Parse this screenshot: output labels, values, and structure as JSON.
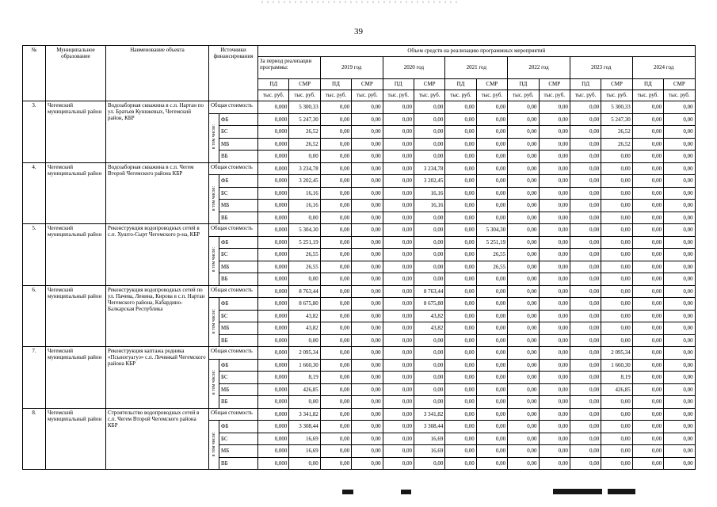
{
  "page": {
    "number": "39"
  },
  "table": {
    "headers": {
      "num": "№",
      "municipality": "Муниципальное образование",
      "object": "Наименование объекта",
      "sources": "Источники финансирования",
      "volume": "Объем средств на реализацию программных мероприятий",
      "period": "За период реализации программы:",
      "years": [
        "2019 год",
        "2020 год",
        "2021 год",
        "2022 год",
        "2023 год",
        "2024 год"
      ],
      "pd": "ПД",
      "smr": "СМР",
      "unit": "тыс. руб."
    },
    "labels": {
      "total": "Общая стоимость",
      "including": "в том числе:"
    },
    "groups": [
      {
        "num": "3.",
        "municipality": "Чегемский муниципальный район",
        "object": "Водозаборная скважина в с.п. Нартан по ул. Братьев Кунижевых, Чегемский район, КБР",
        "total": [
          "0,000",
          "5 300,33",
          "0,00",
          "0,00",
          "0,00",
          "0,00",
          "0,00",
          "0,00",
          "0,00",
          "0,00",
          "0,00",
          "5 300,33",
          "0,00",
          "0,00"
        ],
        "sources": [
          {
            "label": "ФБ",
            "values": [
              "0,000",
              "5 247,30",
              "0,00",
              "0,00",
              "0,00",
              "0,00",
              "0,00",
              "0,00",
              "0,00",
              "0,00",
              "0,00",
              "5 247,30",
              "0,00",
              "0,00"
            ]
          },
          {
            "label": "БС",
            "values": [
              "0,000",
              "26,52",
              "0,00",
              "0,00",
              "0,00",
              "0,00",
              "0,00",
              "0,00",
              "0,00",
              "0,00",
              "0,00",
              "26,52",
              "0,00",
              "0,00"
            ]
          },
          {
            "label": "МБ",
            "values": [
              "0,000",
              "26,52",
              "0,00",
              "0,00",
              "0,00",
              "0,00",
              "0,00",
              "0,00",
              "0,00",
              "0,00",
              "0,00",
              "26,52",
              "0,00",
              "0,00"
            ]
          },
          {
            "label": "ВБ",
            "values": [
              "0,000",
              "0,00",
              "0,00",
              "0,00",
              "0,00",
              "0,00",
              "0,00",
              "0,00",
              "0,00",
              "0,00",
              "0,00",
              "0,00",
              "0,00",
              "0,00"
            ]
          }
        ]
      },
      {
        "num": "4.",
        "municipality": "Чегемский муниципальный район",
        "object": "Водозаборная скважина в с.п. Чегем Второй Чегемского района КБР",
        "total": [
          "0,000",
          "3 234,78",
          "0,00",
          "0,00",
          "0,00",
          "3 234,78",
          "0,00",
          "0,00",
          "0,00",
          "0,00",
          "0,00",
          "0,00",
          "0,00",
          "0,00"
        ],
        "sources": [
          {
            "label": "ФБ",
            "values": [
              "0,000",
              "3 202,45",
              "0,00",
              "0,00",
              "0,00",
              "3 202,45",
              "0,00",
              "0,00",
              "0,00",
              "0,00",
              "0,00",
              "0,00",
              "0,00",
              "0,00"
            ]
          },
          {
            "label": "БС",
            "values": [
              "0,000",
              "16,16",
              "0,00",
              "0,00",
              "0,00",
              "16,16",
              "0,00",
              "0,00",
              "0,00",
              "0,00",
              "0,00",
              "0,00",
              "0,00",
              "0,00"
            ]
          },
          {
            "label": "МБ",
            "values": [
              "0,000",
              "16,16",
              "0,00",
              "0,00",
              "0,00",
              "16,16",
              "0,00",
              "0,00",
              "0,00",
              "0,00",
              "0,00",
              "0,00",
              "0,00",
              "0,00"
            ]
          },
          {
            "label": "ВБ",
            "values": [
              "0,000",
              "0,00",
              "0,00",
              "0,00",
              "0,00",
              "0,00",
              "0,00",
              "0,00",
              "0,00",
              "0,00",
              "0,00",
              "0,00",
              "0,00",
              "0,00"
            ]
          }
        ]
      },
      {
        "num": "5.",
        "municipality": "Чегемский муниципальный район",
        "object": "Реконструкция водопроводных сетей в с.п. Хушто-Сырт Чегемского р-на, КБР",
        "total": [
          "0,000",
          "5 304,30",
          "0,00",
          "0,00",
          "0,00",
          "0,00",
          "0,00",
          "5 304,30",
          "0,00",
          "0,00",
          "0,00",
          "0,00",
          "0,00",
          "0,00"
        ],
        "sources": [
          {
            "label": "ФБ",
            "values": [
              "0,000",
              "5 251,19",
              "0,00",
              "0,00",
              "0,00",
              "0,00",
              "0,00",
              "5 251,19",
              "0,00",
              "0,00",
              "0,00",
              "0,00",
              "0,00",
              "0,00"
            ]
          },
          {
            "label": "БС",
            "values": [
              "0,000",
              "26,55",
              "0,00",
              "0,00",
              "0,00",
              "0,00",
              "0,00",
              "26,55",
              "0,00",
              "0,00",
              "0,00",
              "0,00",
              "0,00",
              "0,00"
            ]
          },
          {
            "label": "МБ",
            "values": [
              "0,000",
              "26,55",
              "0,00",
              "0,00",
              "0,00",
              "0,00",
              "0,00",
              "26,55",
              "0,00",
              "0,00",
              "0,00",
              "0,00",
              "0,00",
              "0,00"
            ]
          },
          {
            "label": "ВБ",
            "values": [
              "0,000",
              "0,00",
              "0,00",
              "0,00",
              "0,00",
              "0,00",
              "0,00",
              "0,00",
              "0,00",
              "0,00",
              "0,00",
              "0,00",
              "0,00",
              "0,00"
            ]
          }
        ]
      },
      {
        "num": "6.",
        "municipality": "Чегемский муниципальный район",
        "object": "Реконструкция водопроводных сетей по ул. Пачева, Ленина, Кирова в с.п. Нартан Чегемского района, Кабардино-Балкарская Республика",
        "total": [
          "0,000",
          "8 763,44",
          "0,00",
          "0,00",
          "0,00",
          "8 763,44",
          "0,00",
          "0,00",
          "0,00",
          "0,00",
          "0,00",
          "0,00",
          "0,00",
          "0,00"
        ],
        "sources": [
          {
            "label": "ФБ",
            "values": [
              "0,000",
              "8 675,80",
              "0,00",
              "0,00",
              "0,00",
              "8 675,80",
              "0,00",
              "0,00",
              "0,00",
              "0,00",
              "0,00",
              "0,00",
              "0,00",
              "0,00"
            ]
          },
          {
            "label": "БС",
            "values": [
              "0,000",
              "43,82",
              "0,00",
              "0,00",
              "0,00",
              "43,82",
              "0,00",
              "0,00",
              "0,00",
              "0,00",
              "0,00",
              "0,00",
              "0,00",
              "0,00"
            ]
          },
          {
            "label": "МБ",
            "values": [
              "0,000",
              "43,82",
              "0,00",
              "0,00",
              "0,00",
              "43,82",
              "0,00",
              "0,00",
              "0,00",
              "0,00",
              "0,00",
              "0,00",
              "0,00",
              "0,00"
            ]
          },
          {
            "label": "ВБ",
            "values": [
              "0,000",
              "0,00",
              "0,00",
              "0,00",
              "0,00",
              "0,00",
              "0,00",
              "0,00",
              "0,00",
              "0,00",
              "0,00",
              "0,00",
              "0,00",
              "0,00"
            ]
          }
        ]
      },
      {
        "num": "7.",
        "municipality": "Чегемский муниципальный район",
        "object": "Реконструкция каптажа родника «Псынэгуагуэ» с.п. Лечинкай Чегемского района КБР",
        "total": [
          "0,000",
          "2 095,34",
          "0,00",
          "0,00",
          "0,00",
          "0,00",
          "0,00",
          "0,00",
          "0,00",
          "0,00",
          "0,00",
          "2 095,34",
          "0,00",
          "0,00"
        ],
        "sources": [
          {
            "label": "ФБ",
            "values": [
              "0,000",
              "1 660,30",
              "0,00",
              "0,00",
              "0,00",
              "0,00",
              "0,00",
              "0,00",
              "0,00",
              "0,00",
              "0,00",
              "1 660,30",
              "0,00",
              "0,00"
            ]
          },
          {
            "label": "БС",
            "values": [
              "0,000",
              "8,19",
              "0,00",
              "0,00",
              "0,00",
              "0,00",
              "0,00",
              "0,00",
              "0,00",
              "0,00",
              "0,00",
              "8,19",
              "0,00",
              "0,00"
            ]
          },
          {
            "label": "МБ",
            "values": [
              "0,000",
              "426,85",
              "0,00",
              "0,00",
              "0,00",
              "0,00",
              "0,00",
              "0,00",
              "0,00",
              "0,00",
              "0,00",
              "426,85",
              "0,00",
              "0,00"
            ]
          },
          {
            "label": "ВБ",
            "values": [
              "0,000",
              "0,00",
              "0,00",
              "0,00",
              "0,00",
              "0,00",
              "0,00",
              "0,00",
              "0,00",
              "0,00",
              "0,00",
              "0,00",
              "0,00",
              "0,00"
            ]
          }
        ]
      },
      {
        "num": "8.",
        "municipality": "Чегемский муниципальный район",
        "object": "Строительство водопроводных сетей в с.п. Чегем Второй Чегемского района КБР",
        "total": [
          "0,000",
          "3 341,82",
          "0,00",
          "0,00",
          "0,00",
          "3 341,82",
          "0,00",
          "0,00",
          "0,00",
          "0,00",
          "0,00",
          "0,00",
          "0,00",
          "0,00"
        ],
        "sources": [
          {
            "label": "ФБ",
            "values": [
              "0,000",
              "3 308,44",
              "0,00",
              "0,00",
              "0,00",
              "3 308,44",
              "0,00",
              "0,00",
              "0,00",
              "0,00",
              "0,00",
              "0,00",
              "0,00",
              "0,00"
            ]
          },
          {
            "label": "БС",
            "values": [
              "0,000",
              "16,69",
              "0,00",
              "0,00",
              "0,00",
              "16,69",
              "0,00",
              "0,00",
              "0,00",
              "0,00",
              "0,00",
              "0,00",
              "0,00",
              "0,00"
            ]
          },
          {
            "label": "МБ",
            "values": [
              "0,000",
              "16,69",
              "0,00",
              "0,00",
              "0,00",
              "16,69",
              "0,00",
              "0,00",
              "0,00",
              "0,00",
              "0,00",
              "0,00",
              "0,00",
              "0,00"
            ]
          },
          {
            "label": "ВБ",
            "values": [
              "0,000",
              "0,00",
              "0,00",
              "0,00",
              "0,00",
              "0,00",
              "0,00",
              "0,00",
              "0,00",
              "0,00",
              "0,00",
              "0,00",
              "0,00",
              "0,00"
            ]
          }
        ]
      }
    ]
  }
}
